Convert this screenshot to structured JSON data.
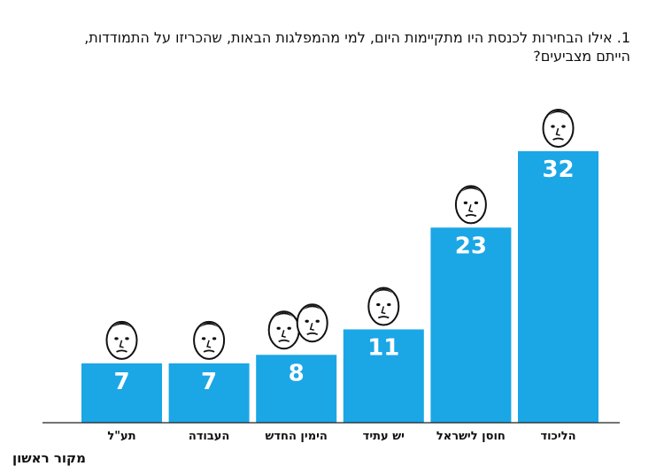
{
  "question": "1. אילו הבחירות לכנסת היו מתקיימות היום, למי מהמפלגות הבאות, שהכריזו על התמודדות, הייתם מצביעים?",
  "source": "מקור ראשון",
  "colors": {
    "bar": "#1ba6e6",
    "bar_text": "#ffffff",
    "axis": "#222222"
  },
  "chart_data": {
    "type": "bar",
    "title": "1. אילו הבחירות לכנסת היו מתקיימות היום, למי מהמפלגות הבאות, שהכריזו על התמודדות, הייתם מצביעים?",
    "xlabel": "",
    "ylabel": "",
    "categories": [
      "תע\"ל",
      "העבודה",
      "הימין החדש",
      "יש עתיד",
      "חוסן לישראל",
      "הליכוד"
    ],
    "values": [
      7,
      7,
      8,
      11,
      23,
      32
    ],
    "ylim": [
      0,
      32
    ],
    "grid": false,
    "legend": "none",
    "icons": [
      "caricature-face-icon",
      "caricature-face-icon",
      "caricature-two-faces-icon",
      "caricature-face-icon",
      "caricature-face-icon",
      "caricature-face-icon"
    ]
  }
}
